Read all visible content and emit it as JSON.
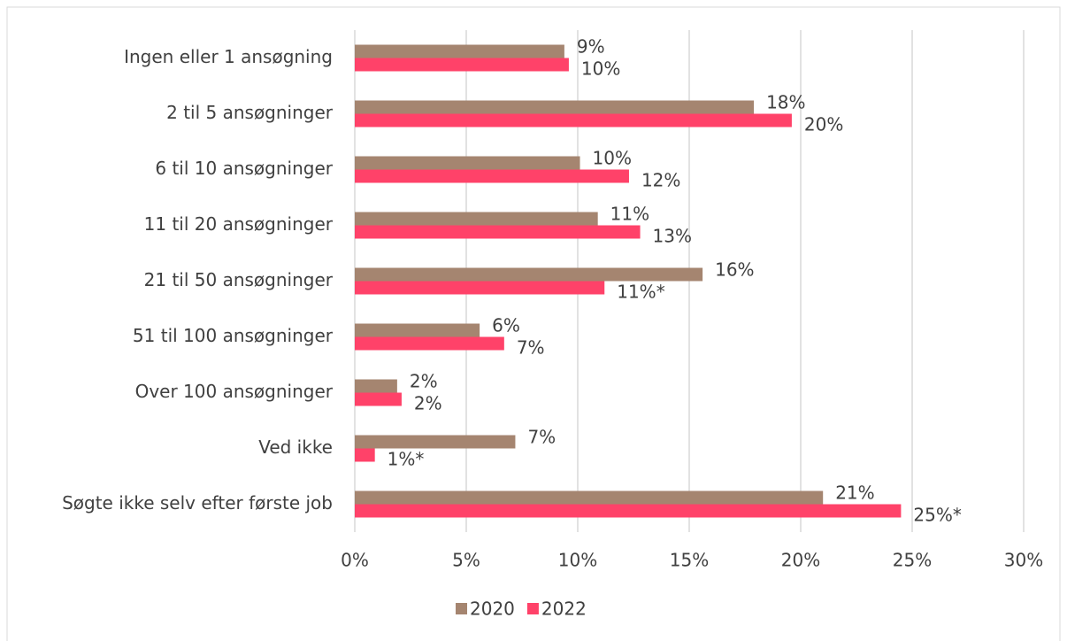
{
  "chart_data": {
    "type": "bar",
    "orientation": "horizontal",
    "categories": [
      "Ingen eller 1 ansøgning",
      "2 til 5 ansøgninger",
      "6 til 10 ansøgninger",
      "11 til 20 ansøgninger",
      "21 til 50 ansøgninger",
      "51 til 100 ansøgninger",
      "Over 100 ansøgninger",
      "Ved ikke",
      "Søgte ikke selv efter første job"
    ],
    "series": [
      {
        "name": "2020",
        "color": "#a58570",
        "values": [
          9.4,
          17.9,
          10.1,
          10.9,
          15.6,
          5.6,
          1.9,
          7.2,
          21.0
        ],
        "value_labels": [
          "9%",
          "18%",
          "10%",
          "11%",
          "16%",
          "6%",
          "2%",
          "7%",
          "21%"
        ]
      },
      {
        "name": "2022",
        "color": "#ff4269",
        "values": [
          9.6,
          19.6,
          12.3,
          12.8,
          11.2,
          6.7,
          2.1,
          0.9,
          24.5
        ],
        "value_labels": [
          "10%",
          "20%",
          "12%",
          "13%",
          "11%*",
          "7%",
          "2%",
          "1%*",
          "25%*"
        ]
      }
    ],
    "xlim": [
      0,
      30
    ],
    "xticks": [
      {
        "value": 0,
        "label": "0%"
      },
      {
        "value": 5,
        "label": "5%"
      },
      {
        "value": 10,
        "label": "10%"
      },
      {
        "value": 15,
        "label": "15%"
      },
      {
        "value": 20,
        "label": "20%"
      },
      {
        "value": 25,
        "label": "25%"
      },
      {
        "value": 30,
        "label": "30%"
      }
    ],
    "grid": true,
    "legend": "bottom"
  }
}
